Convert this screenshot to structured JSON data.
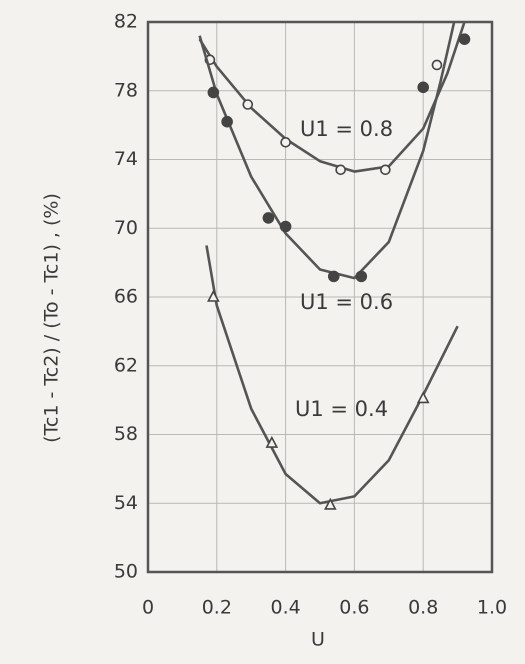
{
  "chart_data": {
    "type": "scatter",
    "x_label": "U",
    "y_label": "(Tc1 - Tc2) / (To - Tc1) ,   (%)",
    "xlim": [
      0,
      1.0
    ],
    "xticks": [
      0,
      {
        "value": 0.2,
        "label": "0.2"
      },
      {
        "value": 0.4,
        "label": "0.4"
      },
      {
        "value": 0.6,
        "label": "0.6"
      },
      {
        "value": 0.8,
        "label": "0.8"
      },
      {
        "value": 1.0,
        "label": "1.0"
      }
    ],
    "ylim": [
      50,
      82
    ],
    "yticks": [
      50,
      54,
      58,
      62,
      66,
      70,
      74,
      78,
      82
    ],
    "grid": true,
    "series": [
      {
        "name": "U1 = 0.8",
        "marker": "open-circle",
        "color": "#444444",
        "x": [
          0.18,
          0.29,
          0.4,
          0.56,
          0.69,
          0.84
        ],
        "values": [
          79.8,
          77.2,
          75.0,
          73.4,
          73.4,
          79.5
        ],
        "curve_x": [
          0.15,
          0.2,
          0.3,
          0.4,
          0.5,
          0.6,
          0.7,
          0.8,
          0.87,
          0.92
        ],
        "curve_values": [
          81.0,
          79.4,
          77.0,
          75.2,
          73.9,
          73.3,
          73.6,
          75.8,
          79.0,
          82.0
        ]
      },
      {
        "name": "U1 = 0.6",
        "marker": "filled-circle",
        "color": "#444444",
        "x": [
          0.19,
          0.23,
          0.35,
          0.4,
          0.54,
          0.62,
          0.8,
          0.92
        ],
        "values": [
          77.9,
          76.2,
          70.6,
          70.1,
          67.2,
          67.2,
          78.2,
          81.0
        ],
        "curve_x": [
          0.15,
          0.2,
          0.3,
          0.4,
          0.5,
          0.6,
          0.7,
          0.8,
          0.85,
          0.89
        ],
        "curve_values": [
          81.2,
          77.8,
          73.0,
          69.7,
          67.6,
          67.1,
          69.2,
          74.5,
          78.5,
          82.0
        ]
      },
      {
        "name": "U1 = 0.4",
        "marker": "open-triangle",
        "color": "#444444",
        "x": [
          0.19,
          0.36,
          0.53,
          0.8
        ],
        "values": [
          66.0,
          57.5,
          53.9,
          60.1
        ],
        "curve_x": [
          0.17,
          0.2,
          0.3,
          0.4,
          0.5,
          0.6,
          0.7,
          0.8,
          0.9
        ],
        "curve_values": [
          69.0,
          65.5,
          59.5,
          55.7,
          54.0,
          54.4,
          56.5,
          60.3,
          64.3
        ]
      }
    ]
  }
}
